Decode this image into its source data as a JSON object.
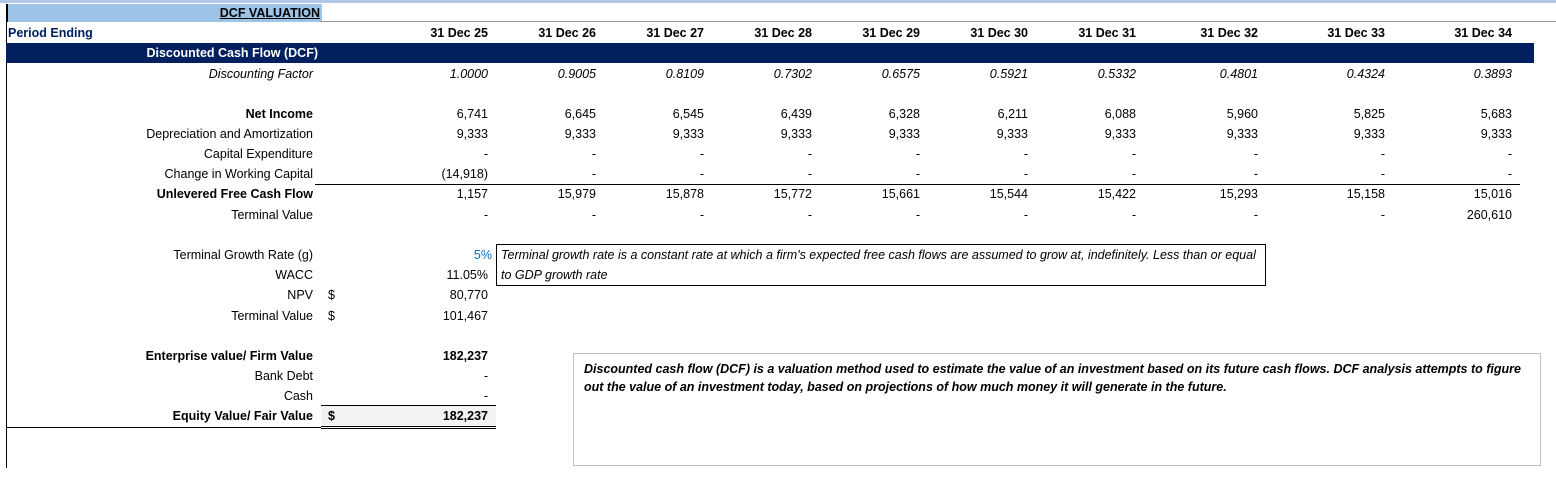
{
  "sheet": {
    "title": "DCF VALUATION",
    "period_label": "Period Ending",
    "section_title": "Discounted Cash Flow (DCF)",
    "periods": [
      "31 Dec 25",
      "31 Dec 26",
      "31 Dec 27",
      "31 Dec 28",
      "31 Dec 29",
      "31 Dec 30",
      "31 Dec 31",
      "31 Dec 32",
      "31 Dec 33",
      "31 Dec 34"
    ],
    "rows": [
      {
        "label": "Discounting Factor",
        "style": "italic",
        "values": [
          "1.0000",
          "0.9005",
          "0.8109",
          "0.7302",
          "0.6575",
          "0.5921",
          "0.5332",
          "0.4801",
          "0.4324",
          "0.3893"
        ]
      },
      {
        "label": "Net Income",
        "style": "bold",
        "values": [
          "6,741",
          "6,645",
          "6,545",
          "6,439",
          "6,328",
          "6,211",
          "6,088",
          "5,960",
          "5,825",
          "5,683"
        ]
      },
      {
        "label": "Depreciation and Amortization",
        "style": "normal",
        "values": [
          "9,333",
          "9,333",
          "9,333",
          "9,333",
          "9,333",
          "9,333",
          "9,333",
          "9,333",
          "9,333",
          "9,333"
        ]
      },
      {
        "label": "Capital Expenditure",
        "style": "normal",
        "values": [
          "-",
          "-",
          "-",
          "-",
          "-",
          "-",
          "-",
          "-",
          "-",
          "-"
        ]
      },
      {
        "label": "Change in Working Capital",
        "style": "normal",
        "values": [
          "(14,918)",
          "-",
          "-",
          "-",
          "-",
          "-",
          "-",
          "-",
          "-",
          "-"
        ]
      },
      {
        "label": "Unlevered Free Cash Flow",
        "style": "bold",
        "values": [
          "1,157",
          "15,979",
          "15,878",
          "15,772",
          "15,661",
          "15,544",
          "15,422",
          "15,293",
          "15,158",
          "15,016"
        ]
      },
      {
        "label": "Terminal Value",
        "style": "normal",
        "values": [
          "-",
          "-",
          "-",
          "-",
          "-",
          "-",
          "-",
          "-",
          "-",
          "260,610"
        ]
      }
    ],
    "summary": [
      {
        "label": "Terminal Growth Rate (g)",
        "currency": "",
        "value": "5%",
        "style": "input"
      },
      {
        "label": "WACC",
        "currency": "",
        "value": "11.05%",
        "style": "normal"
      },
      {
        "label": "NPV",
        "currency": "$",
        "value": "80,770",
        "style": "normal"
      },
      {
        "label": "Terminal Value",
        "currency": "$",
        "value": "101,467",
        "style": "normal"
      },
      {
        "label": "Enterprise value/ Firm Value",
        "currency": "",
        "value": "182,237",
        "style": "bold"
      },
      {
        "label": "Bank Debt",
        "currency": "",
        "value": "-",
        "style": "normal"
      },
      {
        "label": "Cash",
        "currency": "",
        "value": "-",
        "style": "normal"
      },
      {
        "label": "Equity Value/ Fair Value",
        "currency": "$",
        "value": "182,237",
        "style": "bold"
      }
    ],
    "notes": {
      "growth": "Terminal growth rate is a constant rate at which a firm's expected free cash flows are assumed to grow at, indefinitely. Less than or equal to GDP growth rate",
      "dcf": "Discounted cash flow (DCF) is a valuation method used to estimate the value of an investment based on its future cash flows. DCF analysis attempts to figure out the value of an investment today, based on projections of how much money it will generate in the future."
    }
  },
  "colors": {
    "navy": "#002060",
    "title_bg": "#9dc3e6",
    "input_blue": "#0070c0"
  }
}
